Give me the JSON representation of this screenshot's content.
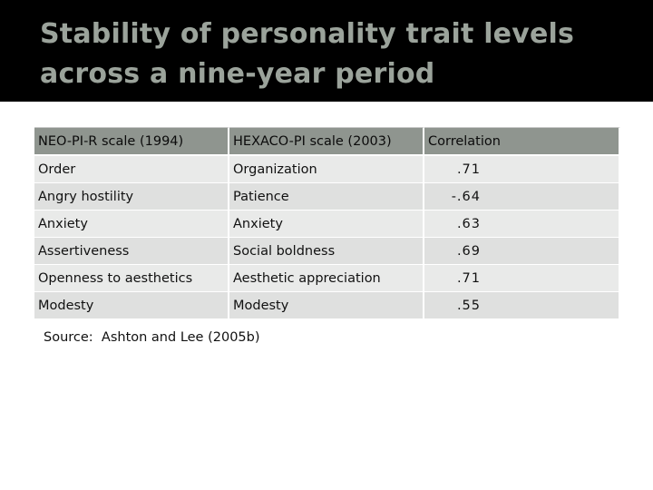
{
  "slide": {
    "title": "Stability of personality trait levels across a nine-year period",
    "source": "Source:  Ashton and Lee (2005b)"
  },
  "table": {
    "headers": [
      "NEO-PI-R scale (1994)",
      "HEXACO-PI scale (2003)",
      "Correlation"
    ],
    "rows": [
      {
        "neo": "Order",
        "hexaco": "Organization",
        "correlation": ".71"
      },
      {
        "neo": "Angry hostility",
        "hexaco": "Patience",
        "correlation": "-.64"
      },
      {
        "neo": "Anxiety",
        "hexaco": "Anxiety",
        "correlation": ".63"
      },
      {
        "neo": "Assertiveness",
        "hexaco": "Social boldness",
        "correlation": ".69"
      },
      {
        "neo": "Openness to aesthetics",
        "hexaco": "Aesthetic appreciation",
        "correlation": ".71"
      },
      {
        "neo": "Modesty",
        "hexaco": "Modesty",
        "correlation": ".55"
      }
    ]
  },
  "colors": {
    "title_bar": "#000000",
    "title_text": "#9ba39b",
    "header_fill": "#8f958f",
    "row_fill": "#e9eae9"
  }
}
